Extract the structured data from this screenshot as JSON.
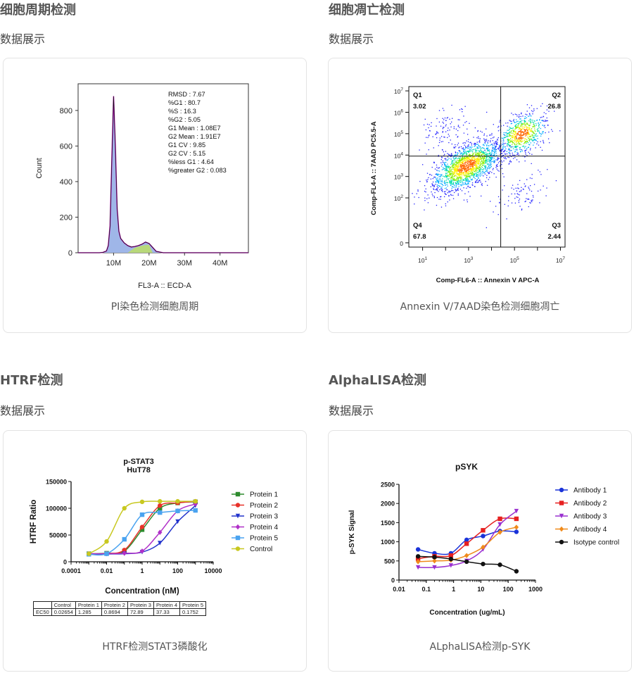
{
  "sections": [
    {
      "title": "细胞周期检测",
      "subtitle": "数据展示",
      "caption": "PI染色检测细胞周期"
    },
    {
      "title": "细胞凋亡检测",
      "subtitle": "数据展示",
      "caption": "Annexin V/7AAD染色检测细胞凋亡"
    },
    {
      "title": "HTRF检测",
      "subtitle": "数据展示",
      "caption": "HTRF检测STAT3磷酸化"
    },
    {
      "title": "AlphaLISA检测",
      "subtitle": "数据展示",
      "caption": "ALphaLISA检测p-SYK"
    }
  ],
  "colors": {
    "title": "#555555",
    "card_border": "#e3e3e3"
  },
  "chart_data": [
    {
      "type": "area",
      "title": "",
      "xlabel": "FL3-A :: ECD-A",
      "ylabel": "Count",
      "x_ticks": [
        "10M",
        "20M",
        "30M",
        "40M"
      ],
      "y_ticks": [
        "0",
        "200",
        "400",
        "600",
        "800"
      ],
      "xlim": [
        0,
        48
      ],
      "ylim": [
        0,
        950
      ],
      "x": [
        0,
        6,
        7,
        8,
        8.5,
        9,
        9.5,
        10,
        10.5,
        11,
        11.5,
        12,
        13,
        14,
        15,
        16,
        17,
        18,
        19,
        20,
        21,
        22,
        24,
        48
      ],
      "values": [
        0,
        0,
        2,
        10,
        40,
        150,
        520,
        880,
        600,
        250,
        120,
        80,
        55,
        40,
        32,
        35,
        40,
        48,
        60,
        52,
        30,
        8,
        0,
        0
      ],
      "stats": [
        "RMSD : 7.67",
        "%G1 : 80.7",
        "%S : 16.3",
        "%G2 : 5.05",
        "G1 Mean : 1.08E7",
        "G2 Mean : 1.91E7",
        "G1 CV : 9.85",
        "G2 CV : 5.15",
        "%less G1 : 4.64",
        "%greater G2 : 0.083"
      ]
    },
    {
      "type": "scatter",
      "title": "",
      "xlabel": "Comp-FL6-A :: Annexin V APC-A",
      "ylabel": "Comp-FL4-A :: 7AAD PC5.5-A",
      "x_ticks": [
        "10^1",
        "10^3",
        "10^5",
        "10^7"
      ],
      "y_ticks": [
        "0",
        "10^2",
        "10^3",
        "10^4",
        "10^5",
        "10^6",
        "10^7"
      ],
      "quadrants": [
        {
          "name": "Q1",
          "value": "3.02"
        },
        {
          "name": "Q2",
          "value": "26.8"
        },
        {
          "name": "Q3",
          "value": "2.44"
        },
        {
          "name": "Q4",
          "value": "67.8"
        }
      ],
      "clusters": [
        {
          "x_log": 2.9,
          "y_log": 3.5,
          "share": 0.678
        },
        {
          "x_log": 5.3,
          "y_log": 5.0,
          "share": 0.268
        },
        {
          "x_log": 2.0,
          "y_log": 5.2,
          "share": 0.0302
        },
        {
          "x_log": 5.3,
          "y_log": 2.2,
          "share": 0.0244
        }
      ]
    },
    {
      "type": "line",
      "title": "p-STAT3",
      "subtitle": "HuT78",
      "xlabel": "Concentration (nM)",
      "ylabel": "HTRF Ratio",
      "xscale": "log",
      "x_ticks": [
        "0.0001",
        "0.01",
        "1",
        "100",
        "10000"
      ],
      "y_ticks": [
        "0",
        "50000",
        "100000",
        "150000"
      ],
      "xlim": [
        0.0001,
        10000
      ],
      "ylim": [
        0,
        150000
      ],
      "x": [
        0.001,
        0.01,
        0.1,
        1,
        10,
        100,
        1000
      ],
      "series": [
        {
          "name": "Protein 1",
          "color": "#2e8b2e",
          "marker": "square",
          "ec50": 1.285,
          "values": [
            15000,
            16000,
            20000,
            60000,
            100000,
            110000,
            112000
          ]
        },
        {
          "name": "Protein 2",
          "color": "#e8322a",
          "marker": "circle",
          "ec50": 0.8694,
          "values": [
            15000,
            15500,
            22000,
            65000,
            105000,
            110000,
            113000
          ]
        },
        {
          "name": "Protein 3",
          "color": "#2233cc",
          "marker": "triangle",
          "ec50": 72.89,
          "values": [
            14000,
            14500,
            15000,
            18000,
            35000,
            75000,
            105000
          ]
        },
        {
          "name": "Protein 4",
          "color": "#b030c8",
          "marker": "diamond",
          "ec50": 37.33,
          "values": [
            15000,
            15000,
            16000,
            20000,
            55000,
            95000,
            108000
          ]
        },
        {
          "name": "Protein 5",
          "color": "#4aa3f0",
          "marker": "square",
          "ec50": 0.1752,
          "values": [
            14000,
            15000,
            42000,
            88000,
            92000,
            95000,
            96000
          ]
        },
        {
          "name": "Control",
          "color": "#c8c820",
          "marker": "circle",
          "ec50": 0.02654,
          "values": [
            15000,
            38000,
            100000,
            112000,
            113000,
            113000,
            113000
          ]
        }
      ],
      "table": {
        "headers": [
          "",
          "Control",
          "Protein 1",
          "Protein 2",
          "Protein 3",
          "Protein 4",
          "Protein 5"
        ],
        "rows": [
          [
            "EC50",
            "0.02654",
            "1.285",
            "0.8694",
            "72.89",
            "37.33",
            "0.1752"
          ]
        ]
      }
    },
    {
      "type": "line",
      "title": "pSYK",
      "xlabel": "Concentration (ug/mL)",
      "ylabel": "p-SYK Signal",
      "xscale": "log",
      "x_ticks": [
        "0.01",
        "0.1",
        "1",
        "10",
        "100",
        "1000"
      ],
      "y_ticks": [
        "0",
        "500",
        "1000",
        "1500",
        "2000",
        "2500"
      ],
      "xlim": [
        0.01,
        1000
      ],
      "ylim": [
        0,
        2500
      ],
      "x": [
        0.05,
        0.2,
        0.8,
        3,
        12,
        50,
        200
      ],
      "series": [
        {
          "name": "Antibody 1",
          "color": "#1a33d9",
          "marker": "circle",
          "values": [
            800,
            700,
            700,
            1050,
            1150,
            1280,
            1260
          ]
        },
        {
          "name": "Antibody 2",
          "color": "#e62020",
          "marker": "square",
          "values": [
            560,
            620,
            640,
            950,
            1300,
            1600,
            1600
          ]
        },
        {
          "name": "Antibody 3",
          "color": "#9a30d0",
          "marker": "triangle",
          "values": [
            330,
            330,
            380,
            500,
            800,
            1450,
            1800
          ]
        },
        {
          "name": "Antibody 4",
          "color": "#f08a1a",
          "marker": "diamond",
          "values": [
            480,
            500,
            520,
            640,
            860,
            1250,
            1380
          ]
        },
        {
          "name": "Isotype control",
          "color": "#111111",
          "marker": "circle",
          "values": [
            620,
            600,
            550,
            480,
            420,
            400,
            230
          ]
        }
      ]
    }
  ]
}
